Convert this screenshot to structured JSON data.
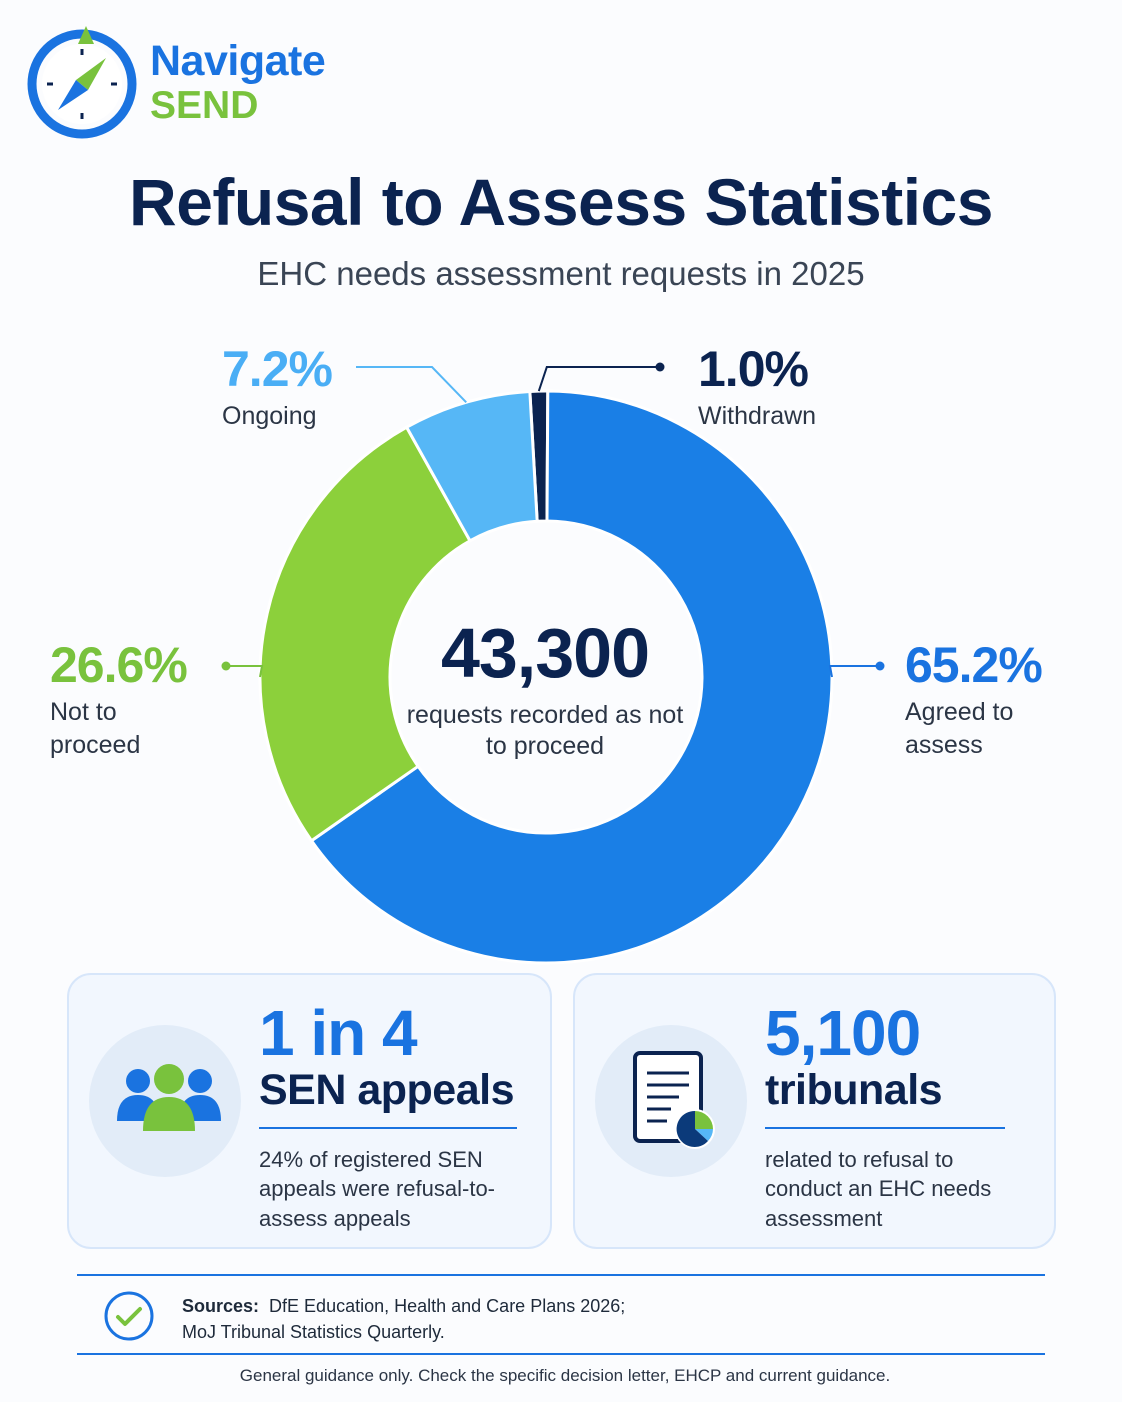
{
  "brand": {
    "line1": "Navigate",
    "line2": "SEND"
  },
  "header": {
    "title": "Refusal to Assess Statistics",
    "subtitle": "EHC needs assessment requests in 2025"
  },
  "chart_data": {
    "type": "pie",
    "title": "Refusal to Assess Statistics",
    "subtitle": "EHC needs assessment requests in 2025",
    "center": {
      "value": "43,300",
      "label": "requests recorded as not to proceed"
    },
    "slices": [
      {
        "name": "Withdrawn",
        "value": 1.0,
        "label": "1.0%",
        "color": "#0b2350"
      },
      {
        "name": "Agreed to assess",
        "value": 65.2,
        "label": "65.2%",
        "color": "#1a7fe6"
      },
      {
        "name": "Not to proceed",
        "value": 26.6,
        "label": "26.6%",
        "color": "#8cd03b"
      },
      {
        "name": "Ongoing",
        "value": 7.2,
        "label": "7.2%",
        "color": "#56b7f6"
      }
    ]
  },
  "cards": [
    {
      "big": "1 in 4",
      "sub": "SEN appeals",
      "desc": "24% of registered SEN appeals were refusal-to-assess appeals",
      "icon": "people-group-icon"
    },
    {
      "big": "5,100",
      "sub": "tribunals",
      "desc": "related to refusal to conduct an EHC needs assessment",
      "icon": "document-chart-icon"
    }
  ],
  "sources": {
    "label": "Sources:",
    "line1": "DfE Education, Health and Care Plans 2026;",
    "line2": "MoJ Tribunal Statistics Quarterly."
  },
  "footer": "General guidance only. Check the specific decision letter, EHCP and current guidance."
}
